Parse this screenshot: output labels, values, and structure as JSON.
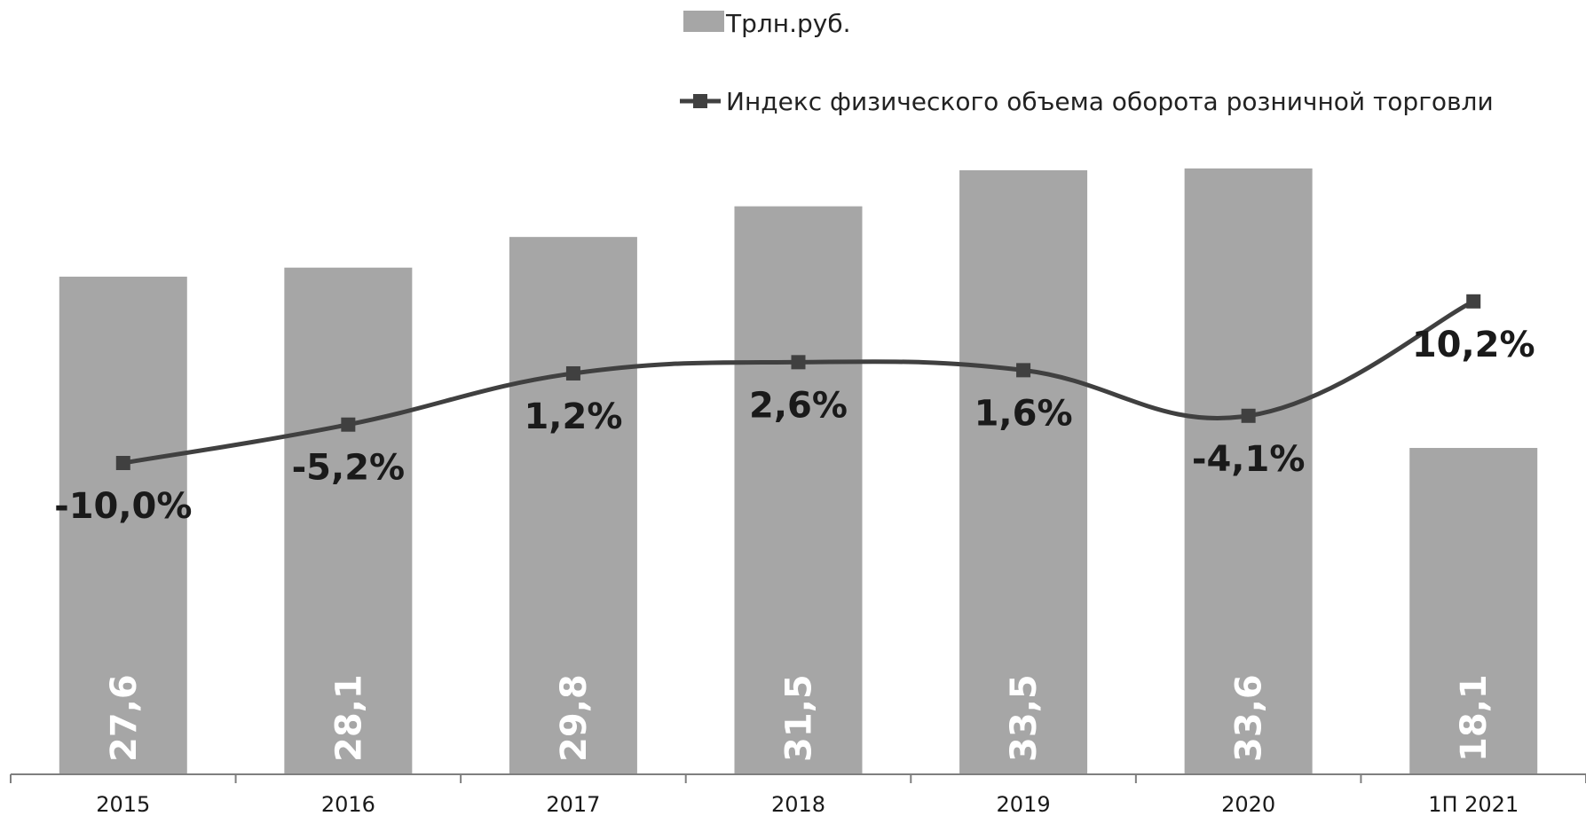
{
  "chart_data": {
    "type": "bar",
    "categories": [
      "2015",
      "2016",
      "2017",
      "2018",
      "2019",
      "2020",
      "1П 2021"
    ],
    "series": [
      {
        "name": "Трлн.руб.",
        "chart_type": "bar",
        "values": [
          27.6,
          28.1,
          29.8,
          31.5,
          33.5,
          33.6,
          18.1
        ],
        "labels": [
          "27,6",
          "28,1",
          "29,8",
          "31,5",
          "33,5",
          "33,6",
          "18,1"
        ],
        "color": "#a6a6a6"
      },
      {
        "name": "Индекс физического объема оборота розничной торговли",
        "chart_type": "line",
        "values": [
          -10.0,
          -5.2,
          1.2,
          2.6,
          1.6,
          -4.1,
          10.2
        ],
        "labels": [
          "-10,0%",
          "-5,2%",
          "1,2%",
          "2,6%",
          "1,6%",
          "-4,1%",
          "10,2%"
        ],
        "color": "#404040"
      }
    ],
    "legend_position": "top-right",
    "grid": false
  }
}
